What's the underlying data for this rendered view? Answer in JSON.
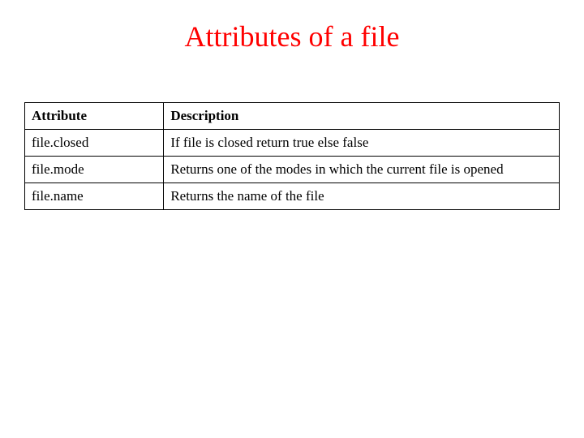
{
  "title": "Attributes of a file",
  "title_color": "#ff0000",
  "title_fontsize": 36,
  "table": {
    "columns": [
      "Attribute",
      "Description"
    ],
    "rows": [
      [
        "file.closed",
        "If file is closed return true else false"
      ],
      [
        "file.mode",
        "Returns one of the modes in which the current file is opened"
      ],
      [
        "file.name",
        "Returns the name of the file"
      ]
    ],
    "border_color": "#000000",
    "cell_fontsize": 17,
    "header_fontweight": "bold",
    "col_widths_pct": [
      26,
      74
    ]
  },
  "background_color": "#ffffff"
}
